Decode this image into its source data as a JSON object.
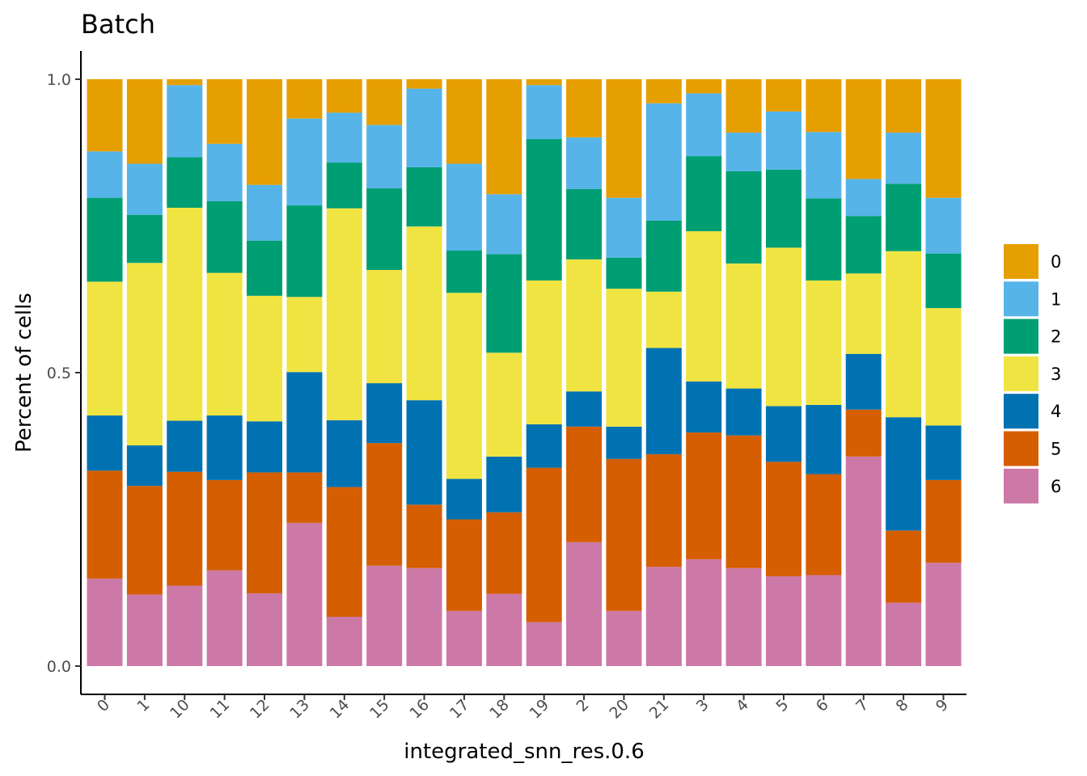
{
  "chart_data": {
    "type": "bar",
    "stacked": true,
    "title": "Batch",
    "xlabel": "integrated_snn_res.0.6",
    "ylabel": "Percent of cells",
    "ylim": [
      0,
      1
    ],
    "yticks": [
      "0.0",
      "0.5",
      "1.0"
    ],
    "yticks_values": [
      0,
      0.5,
      1
    ],
    "categories": [
      "0",
      "1",
      "10",
      "11",
      "12",
      "13",
      "14",
      "15",
      "16",
      "17",
      "18",
      "19",
      "2",
      "20",
      "21",
      "3",
      "4",
      "5",
      "6",
      "7",
      "8",
      "9"
    ],
    "legend_position": "right",
    "series": [
      {
        "name": "6",
        "color": "#CC79A7",
        "values": [
          0.149,
          0.122,
          0.137,
          0.163,
          0.124,
          0.244,
          0.084,
          0.171,
          0.167,
          0.094,
          0.123,
          0.075,
          0.211,
          0.094,
          0.169,
          0.182,
          0.167,
          0.153,
          0.155,
          0.357,
          0.108,
          0.176
        ]
      },
      {
        "name": "5",
        "color": "#D55E00",
        "values": [
          0.184,
          0.185,
          0.194,
          0.154,
          0.206,
          0.086,
          0.221,
          0.209,
          0.108,
          0.156,
          0.139,
          0.263,
          0.197,
          0.259,
          0.192,
          0.216,
          0.226,
          0.195,
          0.172,
          0.08,
          0.123,
          0.141
        ]
      },
      {
        "name": "4",
        "color": "#0072B2",
        "values": [
          0.094,
          0.069,
          0.087,
          0.11,
          0.087,
          0.171,
          0.114,
          0.102,
          0.178,
          0.069,
          0.095,
          0.074,
          0.06,
          0.055,
          0.181,
          0.087,
          0.08,
          0.095,
          0.118,
          0.095,
          0.193,
          0.093
        ]
      },
      {
        "name": "3",
        "color": "#F0E442",
        "values": [
          0.228,
          0.311,
          0.363,
          0.243,
          0.214,
          0.128,
          0.361,
          0.193,
          0.296,
          0.317,
          0.177,
          0.245,
          0.225,
          0.235,
          0.096,
          0.256,
          0.213,
          0.27,
          0.212,
          0.137,
          0.283,
          0.2
        ]
      },
      {
        "name": "2",
        "color": "#009E73",
        "values": [
          0.143,
          0.082,
          0.086,
          0.122,
          0.094,
          0.156,
          0.078,
          0.139,
          0.101,
          0.072,
          0.168,
          0.241,
          0.12,
          0.053,
          0.121,
          0.128,
          0.157,
          0.133,
          0.14,
          0.098,
          0.115,
          0.093
        ]
      },
      {
        "name": "1",
        "color": "#56B4E9",
        "values": [
          0.079,
          0.087,
          0.123,
          0.098,
          0.095,
          0.148,
          0.085,
          0.108,
          0.134,
          0.148,
          0.102,
          0.092,
          0.088,
          0.102,
          0.2,
          0.107,
          0.066,
          0.099,
          0.113,
          0.063,
          0.087,
          0.095
        ]
      },
      {
        "name": "0",
        "color": "#E69F00",
        "values": [
          0.123,
          0.144,
          0.01,
          0.11,
          0.18,
          0.067,
          0.057,
          0.078,
          0.016,
          0.144,
          0.196,
          0.01,
          0.099,
          0.202,
          0.041,
          0.024,
          0.091,
          0.055,
          0.09,
          0.17,
          0.091,
          0.202
        ]
      }
    ],
    "legend": [
      "0",
      "1",
      "2",
      "3",
      "4",
      "5",
      "6"
    ]
  }
}
